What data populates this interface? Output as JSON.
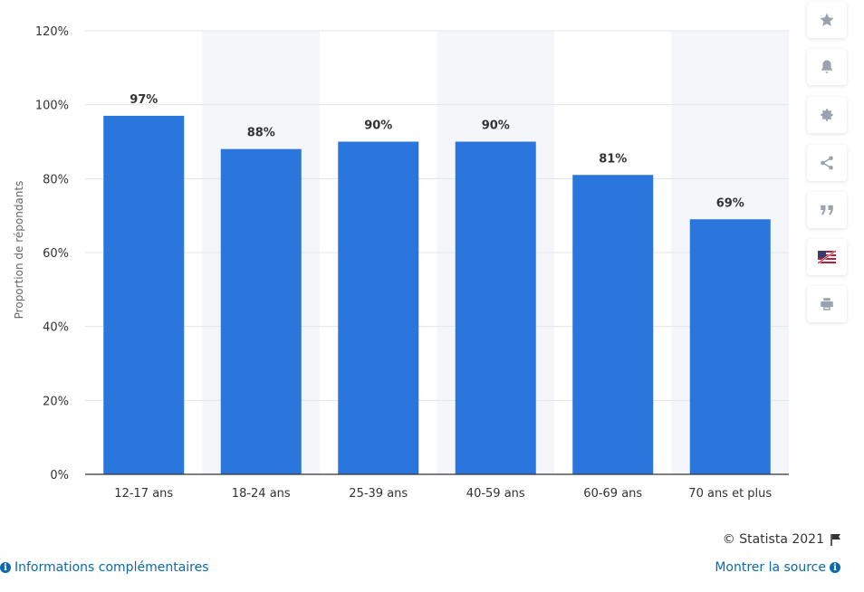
{
  "chart_data": {
    "type": "bar",
    "categories": [
      "12-17 ans",
      "18-24 ans",
      "25-39 ans",
      "40-59 ans",
      "60-69 ans",
      "70 ans et plus"
    ],
    "values": [
      97,
      88,
      90,
      90,
      81,
      69
    ],
    "data_labels": [
      "97%",
      "88%",
      "90%",
      "90%",
      "81%",
      "69%"
    ],
    "ylabel": "Proportion de répondants",
    "ylim": [
      0,
      120
    ],
    "y_ticks": [
      0,
      20,
      40,
      60,
      80,
      100,
      120
    ],
    "y_tick_labels": [
      "0%",
      "20%",
      "40%",
      "60%",
      "80%",
      "100%",
      "120%"
    ],
    "bar_color": "#2a76dd",
    "grid": true,
    "alternating_band_color": "#f4f6f9"
  },
  "tools": {
    "items": [
      {
        "name": "star-icon"
      },
      {
        "name": "bell-icon"
      },
      {
        "name": "gear-icon"
      },
      {
        "name": "share-icon"
      },
      {
        "name": "quote-icon"
      },
      {
        "name": "flag-icon"
      },
      {
        "name": "print-icon"
      }
    ]
  },
  "footer": {
    "copyright": "© Statista 2021",
    "info_link": "Informations complémentaires",
    "source_link": "Montrer la source"
  }
}
